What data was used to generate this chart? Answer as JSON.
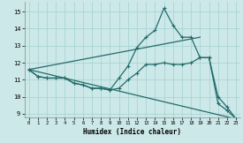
{
  "title": "",
  "xlabel": "Humidex (Indice chaleur)",
  "xlim": [
    -0.5,
    23.5
  ],
  "ylim": [
    8.8,
    15.6
  ],
  "yticks": [
    9,
    10,
    11,
    12,
    13,
    14,
    15
  ],
  "xticks": [
    0,
    1,
    2,
    3,
    4,
    5,
    6,
    7,
    8,
    9,
    10,
    11,
    12,
    13,
    14,
    15,
    16,
    17,
    18,
    19,
    20,
    21,
    22,
    23
  ],
  "bg_color": "#cce8e8",
  "line_color": "#236b6b",
  "grid_color": "#aad4d4",
  "line1_x": [
    0,
    1,
    2,
    3,
    4,
    5,
    6,
    7,
    8,
    9,
    10,
    11,
    12,
    13,
    14,
    15,
    16,
    17,
    18,
    19,
    20,
    21,
    22,
    23
  ],
  "line1_y": [
    11.6,
    11.2,
    11.1,
    11.1,
    11.1,
    10.8,
    10.7,
    10.5,
    10.5,
    10.4,
    11.1,
    11.8,
    12.9,
    13.5,
    13.9,
    15.2,
    14.2,
    13.5,
    13.5,
    12.3,
    12.3,
    9.6,
    9.2,
    8.7
  ],
  "line2_x": [
    0,
    1,
    2,
    3,
    4,
    5,
    6,
    7,
    8,
    9,
    10,
    11,
    12,
    13,
    14,
    15,
    16,
    17,
    18,
    19,
    20,
    21,
    22,
    23
  ],
  "line2_y": [
    11.6,
    11.2,
    11.1,
    11.1,
    11.1,
    10.8,
    10.7,
    10.5,
    10.5,
    10.4,
    10.5,
    11.0,
    11.4,
    11.9,
    11.9,
    12.0,
    11.9,
    11.9,
    12.0,
    12.3,
    12.3,
    10.0,
    9.4,
    8.7
  ],
  "line3_x": [
    0,
    23
  ],
  "line3_y": [
    11.6,
    8.7
  ],
  "line4_x": [
    0,
    19
  ],
  "line4_y": [
    11.6,
    13.5
  ]
}
